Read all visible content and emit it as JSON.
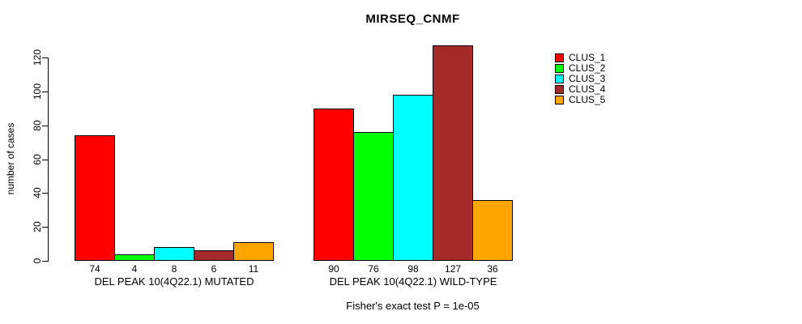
{
  "chart_data": {
    "type": "bar",
    "title": "MIRSEQ_CNMF",
    "ylabel": "number of cases",
    "footnote": "Fisher's exact test P = 1e-05",
    "ylim": [
      0,
      120
    ],
    "yticks": [
      0,
      20,
      40,
      60,
      80,
      100,
      120
    ],
    "grid": false,
    "legend_position": "top-right-outside",
    "legend": [
      {
        "name": "CLUS_1",
        "color": "#FF0000"
      },
      {
        "name": "CLUS_2",
        "color": "#00FF00"
      },
      {
        "name": "CLUS_3",
        "color": "#00FFFF"
      },
      {
        "name": "CLUS_4",
        "color": "#A52A2A"
      },
      {
        "name": "CLUS_5",
        "color": "#FFA500"
      }
    ],
    "groups": [
      {
        "label": "DEL PEAK 10(4Q22.1) MUTATED",
        "values": [
          74,
          4,
          8,
          6,
          11
        ]
      },
      {
        "label": "DEL PEAK 10(4Q22.1) WILD-TYPE",
        "values": [
          90,
          76,
          98,
          127,
          36
        ]
      }
    ]
  }
}
